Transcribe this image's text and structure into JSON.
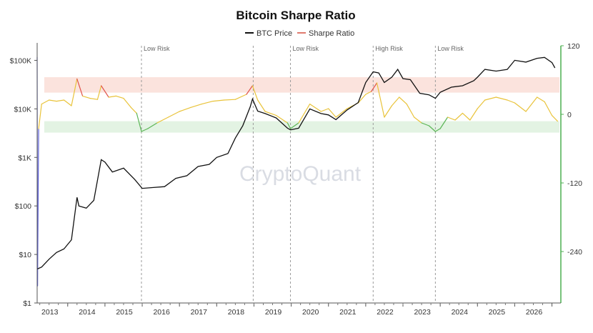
{
  "chart_data": {
    "type": "line",
    "title": "Bitcoin Sharpe Ratio",
    "title_icon": "bitcoin-icon",
    "watermark": "CryptoQuant",
    "legend": [
      {
        "name": "BTC Price",
        "color": "#111111"
      },
      {
        "name": "Sharpe Ratio",
        "color": "#e07a6e"
      }
    ],
    "legend_position": "top-center",
    "x_ticks": [
      "2013",
      "2014",
      "2015",
      "2016",
      "2017",
      "2018",
      "2019",
      "2020",
      "2021",
      "2022",
      "2023",
      "2024",
      "2025",
      "2026"
    ],
    "y_left": {
      "scale": "log",
      "range": [
        1,
        200000
      ],
      "ticks": [
        "$1",
        "$10",
        "$100",
        "$1K",
        "$10K",
        "$100K"
      ]
    },
    "y_right": {
      "range": [
        -330,
        120
      ],
      "ticks": [
        "120",
        "0",
        "-120",
        "-240"
      ],
      "color": "#4caf50"
    },
    "bands": [
      {
        "label": "high",
        "from": 38,
        "to": 65,
        "color": "#fbe3dd"
      },
      {
        "label": "low",
        "from": -12,
        "to": -32,
        "color": "#e3f3e3"
      }
    ],
    "annotations": [
      {
        "x": 2014.98,
        "label": "Low Risk"
      },
      {
        "x": 2017.98,
        "label": ""
      },
      {
        "x": 2018.98,
        "label": "Low Risk"
      },
      {
        "x": 2021.2,
        "label": "High Risk"
      },
      {
        "x": 2022.87,
        "label": "Low Risk"
      }
    ],
    "series": [
      {
        "name": "BTC Price",
        "color": "#111111",
        "x": [
          2012.18,
          2012.3,
          2012.5,
          2012.7,
          2012.9,
          2013.1,
          2013.25,
          2013.3,
          2013.5,
          2013.7,
          2013.9,
          2014.0,
          2014.2,
          2014.5,
          2014.8,
          2015.0,
          2015.3,
          2015.6,
          2015.9,
          2016.2,
          2016.5,
          2016.8,
          2017.0,
          2017.3,
          2017.5,
          2017.7,
          2017.9,
          2017.96,
          2018.1,
          2018.3,
          2018.6,
          2018.9,
          2018.98,
          2019.2,
          2019.5,
          2019.8,
          2020.0,
          2020.2,
          2020.5,
          2020.8,
          2021.0,
          2021.2,
          2021.35,
          2021.5,
          2021.7,
          2021.86,
          2022.0,
          2022.2,
          2022.45,
          2022.7,
          2022.87,
          2023.0,
          2023.3,
          2023.6,
          2023.9,
          2024.0,
          2024.2,
          2024.5,
          2024.8,
          2024.95,
          2025.0,
          2025.3,
          2025.6,
          2025.8,
          2026.0,
          2026.08
        ],
        "y": [
          5,
          5.5,
          8,
          11,
          13,
          20,
          150,
          100,
          90,
          130,
          900,
          800,
          500,
          600,
          350,
          230,
          240,
          250,
          370,
          420,
          650,
          720,
          1000,
          1200,
          2500,
          4500,
          11000,
          16000,
          9000,
          8000,
          6500,
          4000,
          3700,
          4000,
          10000,
          8000,
          7500,
          6000,
          9500,
          13500,
          35000,
          58000,
          55000,
          35000,
          45000,
          65000,
          42000,
          40000,
          21000,
          19500,
          16500,
          22000,
          28000,
          30000,
          38000,
          45000,
          65000,
          60000,
          65000,
          90000,
          100000,
          92000,
          110000,
          115000,
          90000,
          70000
        ]
      },
      {
        "name": "Sharpe Ratio",
        "x": [
          2012.18,
          2012.19,
          2012.22,
          2012.3,
          2012.5,
          2012.7,
          2012.9,
          2013.1,
          2013.25,
          2013.4,
          2013.6,
          2013.8,
          2013.9,
          2014.1,
          2014.3,
          2014.5,
          2014.7,
          2014.85,
          2014.98,
          2015.15,
          2015.4,
          2015.7,
          2016.0,
          2016.3,
          2016.6,
          2016.9,
          2017.2,
          2017.5,
          2017.8,
          2017.96,
          2018.1,
          2018.3,
          2018.6,
          2018.9,
          2018.98,
          2019.2,
          2019.5,
          2019.8,
          2020.0,
          2020.2,
          2020.5,
          2020.8,
          2021.0,
          2021.15,
          2021.3,
          2021.5,
          2021.7,
          2021.9,
          2022.1,
          2022.3,
          2022.5,
          2022.7,
          2022.87,
          2023.0,
          2023.2,
          2023.4,
          2023.6,
          2023.8,
          2024.0,
          2024.2,
          2024.5,
          2024.8,
          2025.0,
          2025.3,
          2025.6,
          2025.8,
          2026.0,
          2026.15
        ],
        "y": [
          100,
          -300,
          -25,
          18,
          25,
          23,
          25,
          15,
          62,
          32,
          28,
          26,
          50,
          30,
          32,
          28,
          12,
          2,
          -30,
          -25,
          -15,
          -5,
          5,
          12,
          18,
          23,
          25,
          26,
          35,
          50,
          25,
          5,
          -2,
          -15,
          -25,
          -15,
          18,
          5,
          10,
          -5,
          10,
          20,
          35,
          40,
          55,
          -5,
          15,
          30,
          18,
          -5,
          -15,
          -20,
          -30,
          -25,
          -5,
          -10,
          2,
          -10,
          10,
          25,
          30,
          25,
          20,
          5,
          30,
          22,
          -2,
          -12
        ],
        "color_rule": [
          {
            "min": 40,
            "color": "#e0524a"
          },
          {
            "min": -12,
            "color": "#e9c33a"
          },
          {
            "min": -30,
            "color": "#5bb556"
          },
          {
            "min": -1000,
            "color": "#5c5fd6"
          }
        ]
      }
    ]
  }
}
